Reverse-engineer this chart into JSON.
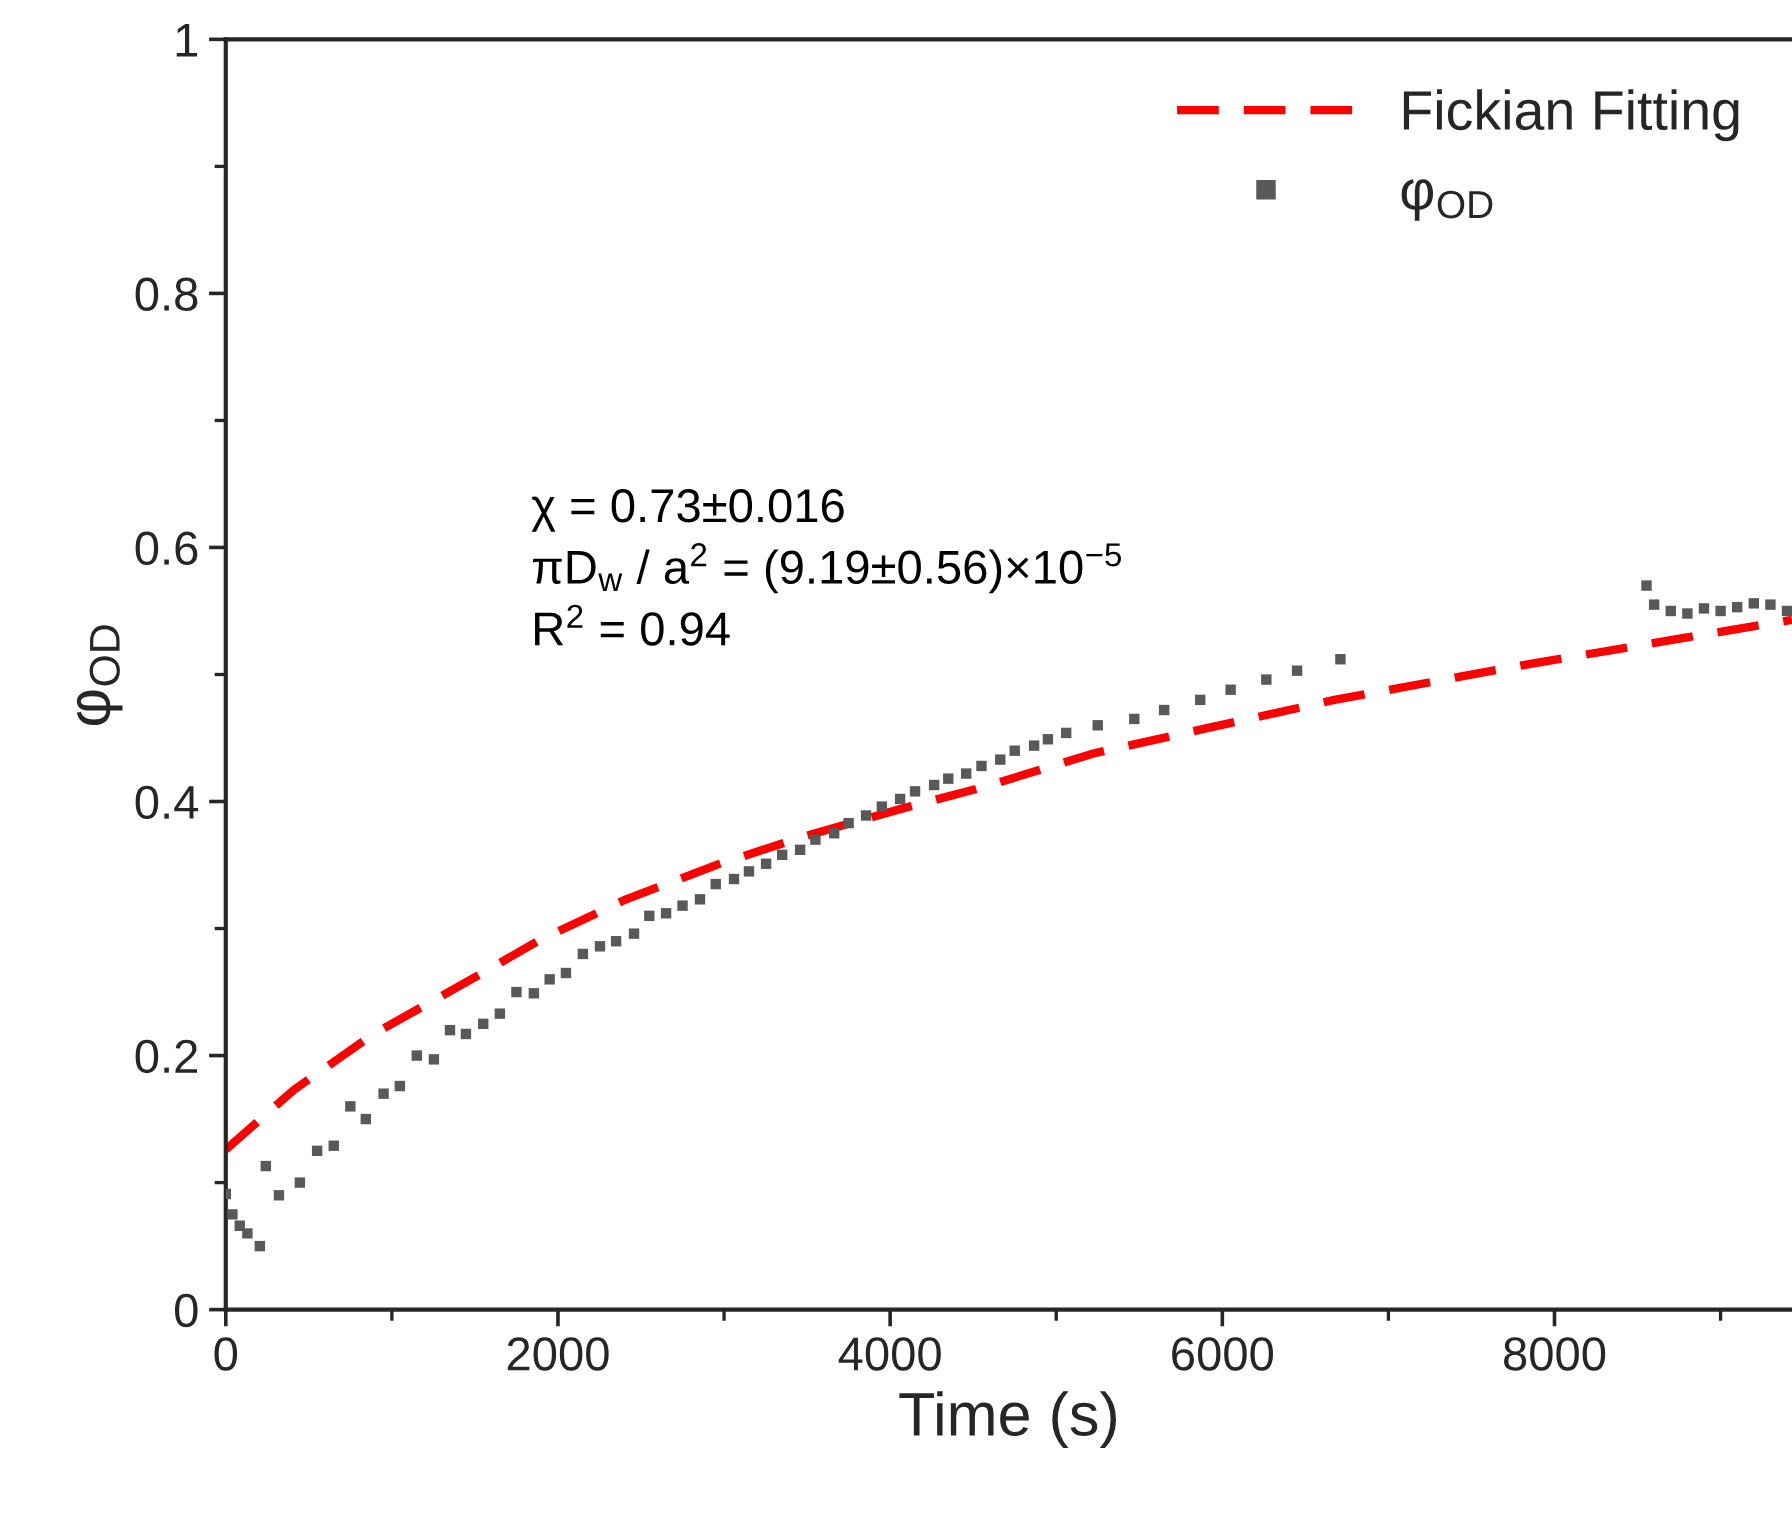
{
  "chart_data": {
    "type": "scatter",
    "xlabel": "Time (s)",
    "ylabel": "φ$_{OD}$",
    "xlim": [
      0,
      9430
    ],
    "xticks": [
      0,
      2000,
      4000,
      6000,
      8000
    ],
    "ylim": [
      0,
      1
    ],
    "yticks": [
      0,
      {
        "value": 0.2,
        "label": "0.2"
      },
      {
        "value": 0.4,
        "label": "0.4"
      },
      {
        "value": 0.6,
        "label": "0.6"
      },
      {
        "value": 0.8,
        "label": "0.8"
      },
      1
    ],
    "grid": false,
    "legend": "top right",
    "annotations": [
      "χ = 0.73±0.016",
      "πD$_{w}$ / a$^{2}$ = (9.19±0.56)×10$^{−5}$",
      "R$^{2}$ = 0.94"
    ],
    "series": [
      {
        "name": "Fickian Fitting",
        "type": "line",
        "line_style": "dashed",
        "marker": "none",
        "color": "#ff0000",
        "x": [
          0,
          410,
          890,
          1410,
          1892,
          2410,
          2952,
          3494,
          4060,
          4578,
          5229,
          6675,
          7795,
          8880,
          9430
        ],
        "values": [
          0.126,
          0.173,
          0.217,
          0.255,
          0.291,
          0.323,
          0.35,
          0.373,
          0.394,
          0.412,
          0.438,
          0.48,
          0.507,
          0.531,
          0.543
        ]
      },
      {
        "name": "φ$_{OD}$",
        "marker": "square",
        "color": "#595959",
        "x": [
          0,
          40,
          84,
          130,
          205,
          241,
          320,
          446,
          550,
          650,
          750,
          843,
          950,
          1048,
          1150,
          1253,
          1350,
          1446,
          1550,
          1650,
          1750,
          1855,
          1950,
          2048,
          2150,
          2253,
          2350,
          2458,
          2550,
          2651,
          2750,
          2855,
          2950,
          3060,
          3150,
          3253,
          3350,
          3458,
          3550,
          3663,
          3750,
          3855,
          3950,
          4060,
          4150,
          4265,
          4350,
          4458,
          4550,
          4663,
          4750,
          4867,
          4950,
          5060,
          5250,
          5470,
          5650,
          5867,
          6050,
          6265,
          6450,
          6711,
          8554,
          8600,
          8700,
          8800,
          8900,
          9000,
          9100,
          9200,
          9300,
          9400
        ],
        "values": [
          0.091,
          0.075,
          0.066,
          0.06,
          0.05,
          0.113,
          0.09,
          0.1,
          0.125,
          0.129,
          0.16,
          0.15,
          0.17,
          0.176,
          0.2,
          0.197,
          0.22,
          0.217,
          0.225,
          0.233,
          0.25,
          0.249,
          0.26,
          0.265,
          0.28,
          0.286,
          0.29,
          0.296,
          0.31,
          0.312,
          0.318,
          0.323,
          0.335,
          0.339,
          0.345,
          0.351,
          0.358,
          0.362,
          0.37,
          0.375,
          0.383,
          0.389,
          0.396,
          0.402,
          0.408,
          0.413,
          0.418,
          0.422,
          0.428,
          0.433,
          0.44,
          0.444,
          0.449,
          0.454,
          0.46,
          0.465,
          0.472,
          0.48,
          0.488,
          0.496,
          0.503,
          0.512,
          0.57,
          0.555,
          0.55,
          0.548,
          0.552,
          0.55,
          0.553,
          0.556,
          0.555,
          0.55
        ]
      }
    ]
  }
}
